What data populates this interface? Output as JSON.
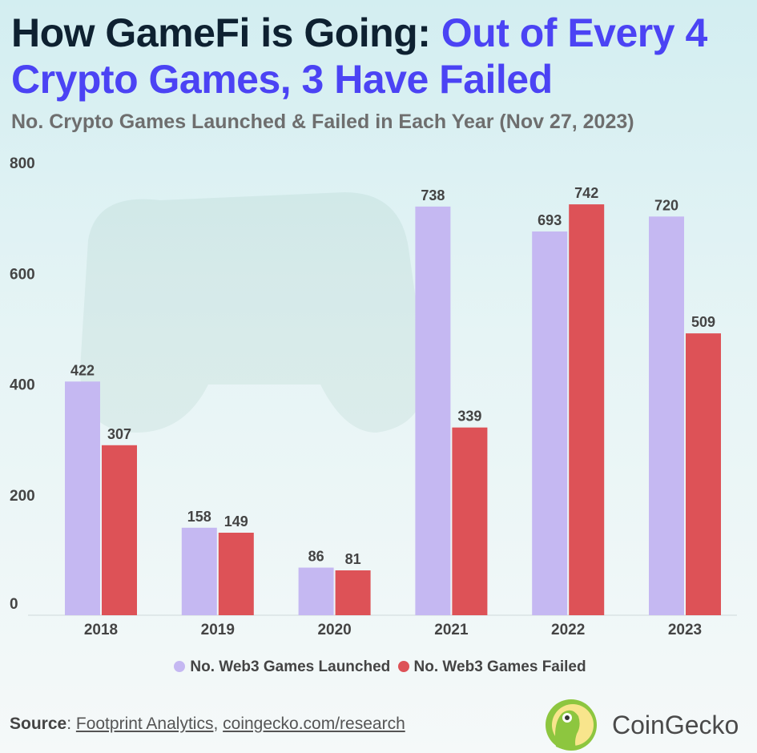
{
  "title": {
    "part1": "How GameFi is Going: ",
    "part2": "Out of Every 4 Crypto Games, 3 Have Failed"
  },
  "subtitle": "No. Crypto Games Launched & Failed in Each Year (Nov 27, 2023)",
  "chart_data": {
    "type": "bar",
    "categories": [
      "2018",
      "2019",
      "2020",
      "2021",
      "2022",
      "2023"
    ],
    "series": [
      {
        "name": "No. Web3 Games Launched",
        "color": "#c5b8f2",
        "values": [
          422,
          158,
          86,
          738,
          693,
          720
        ]
      },
      {
        "name": "No. Web3 Games Failed",
        "color": "#dd5257",
        "values": [
          307,
          149,
          81,
          339,
          742,
          509
        ]
      }
    ],
    "yticks": [
      0,
      200,
      400,
      600,
      800
    ],
    "ylim": [
      0,
      800
    ],
    "grid": false,
    "legend": "bottom",
    "data_labels": true
  },
  "legend": {
    "launched": "No. Web3 Games Launched",
    "failed": "No. Web3 Games Failed"
  },
  "footer": {
    "source_label": "Source",
    "sep": ": ",
    "link1": "Footprint Analytics",
    "comma": ", ",
    "link2": "coingecko.com/research",
    "brand": "CoinGecko"
  }
}
